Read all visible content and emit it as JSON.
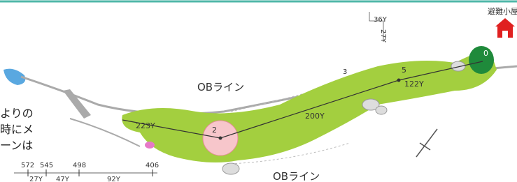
{
  "course": {
    "shelter": "避難小屋",
    "ob_lines": [
      "OBライン",
      "OBライン"
    ],
    "markers": [
      "0",
      "5",
      "2",
      "3"
    ],
    "distances": [
      "36Y",
      "27Y",
      "122Y",
      "200Y",
      "223Y"
    ],
    "side_note": [
      "よりの",
      "時にメ",
      "ーンは"
    ],
    "scale": {
      "ticks": [
        572,
        545,
        498,
        406
      ],
      "segments": [
        "27Y",
        "47Y",
        "92Y"
      ]
    }
  }
}
